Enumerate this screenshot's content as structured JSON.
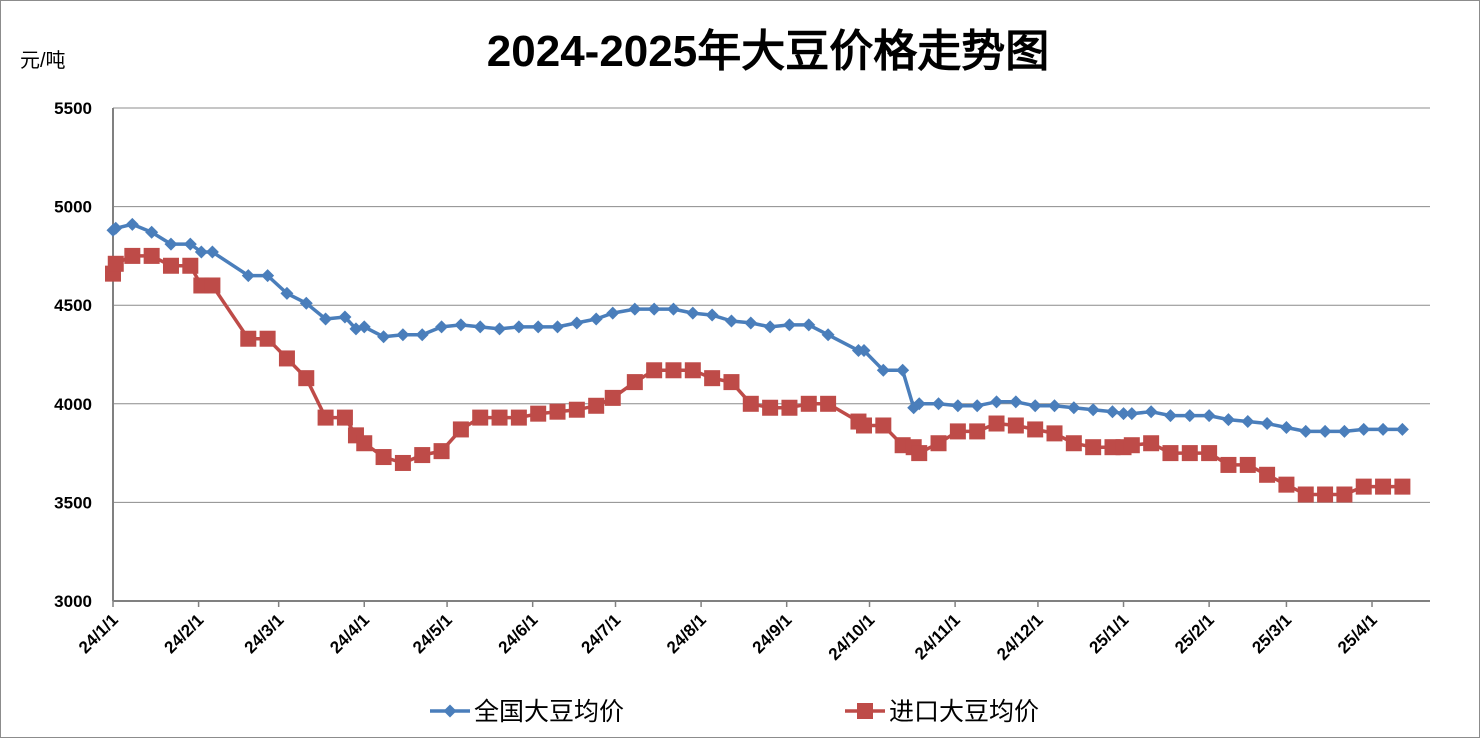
{
  "chart_data": {
    "type": "line",
    "title": "2024-2025年大豆价格走势图",
    "ylabel": "元/吨",
    "ylim": [
      3000,
      5500
    ],
    "yticks": [
      3000,
      3500,
      4000,
      4500,
      5000,
      5500
    ],
    "xlim": [
      "2024-01-01",
      "2025-04-22"
    ],
    "xticks": [
      "2024-01-01",
      "2024-02-01",
      "2024-03-01",
      "2024-04-01",
      "2024-05-01",
      "2024-06-01",
      "2024-07-01",
      "2024-08-01",
      "2024-09-01",
      "2024-10-01",
      "2024-11-01",
      "2024-12-01",
      "2025-01-01",
      "2025-02-01",
      "2025-03-01",
      "2025-04-01"
    ],
    "xtick_labels": [
      "24/1/1",
      "24/2/1",
      "24/3/1",
      "24/4/1",
      "24/5/1",
      "24/6/1",
      "24/7/1",
      "24/8/1",
      "24/9/1",
      "24/10/1",
      "24/11/1",
      "24/12/1",
      "25/1/1",
      "25/2/1",
      "25/3/1",
      "25/4/1"
    ],
    "grid": "horizontal",
    "legend_position": "bottom",
    "series": [
      {
        "name": "全国大豆均价",
        "color": "#4a7ebb",
        "marker": "diamond",
        "x": [
          "2024-01-01",
          "2024-01-02",
          "2024-01-08",
          "2024-01-15",
          "2024-01-22",
          "2024-01-29",
          "2024-02-02",
          "2024-02-06",
          "2024-02-19",
          "2024-02-26",
          "2024-03-04",
          "2024-03-11",
          "2024-03-18",
          "2024-03-25",
          "2024-03-29",
          "2024-04-01",
          "2024-04-08",
          "2024-04-15",
          "2024-04-22",
          "2024-04-29",
          "2024-05-06",
          "2024-05-13",
          "2024-05-20",
          "2024-05-27",
          "2024-06-03",
          "2024-06-10",
          "2024-06-17",
          "2024-06-24",
          "2024-06-30",
          "2024-07-08",
          "2024-07-15",
          "2024-07-22",
          "2024-07-29",
          "2024-08-05",
          "2024-08-12",
          "2024-08-19",
          "2024-08-26",
          "2024-09-02",
          "2024-09-09",
          "2024-09-16",
          "2024-09-27",
          "2024-09-29",
          "2024-10-06",
          "2024-10-13",
          "2024-10-17",
          "2024-10-19",
          "2024-10-26",
          "2024-11-02",
          "2024-11-09",
          "2024-11-16",
          "2024-11-23",
          "2024-11-30",
          "2024-12-07",
          "2024-12-14",
          "2024-12-21",
          "2024-12-28",
          "2025-01-01",
          "2025-01-04",
          "2025-01-11",
          "2025-01-18",
          "2025-01-25",
          "2025-02-01",
          "2025-02-08",
          "2025-02-15",
          "2025-02-22",
          "2025-03-01",
          "2025-03-08",
          "2025-03-15",
          "2025-03-22",
          "2025-03-29",
          "2025-04-05",
          "2025-04-12"
        ],
        "y": [
          4880,
          4890,
          4910,
          4870,
          4810,
          4810,
          4770,
          4770,
          4650,
          4650,
          4560,
          4510,
          4430,
          4440,
          4380,
          4390,
          4340,
          4350,
          4350,
          4390,
          4400,
          4390,
          4380,
          4390,
          4390,
          4390,
          4410,
          4430,
          4460,
          4480,
          4480,
          4480,
          4460,
          4450,
          4420,
          4410,
          4390,
          4400,
          4400,
          4350,
          4270,
          4270,
          4170,
          4170,
          3980,
          4000,
          4000,
          3990,
          3990,
          4010,
          4010,
          3990,
          3990,
          3980,
          3970,
          3960,
          3950,
          3950,
          3960,
          3940,
          3940,
          3940,
          3920,
          3910,
          3900,
          3880,
          3860,
          3860,
          3860,
          3870,
          3870,
          3870
        ]
      },
      {
        "name": "进口大豆均价",
        "color": "#be4b48",
        "marker": "square",
        "x": [
          "2024-01-01",
          "2024-01-02",
          "2024-01-08",
          "2024-01-15",
          "2024-01-22",
          "2024-01-29",
          "2024-02-02",
          "2024-02-06",
          "2024-02-19",
          "2024-02-26",
          "2024-03-04",
          "2024-03-11",
          "2024-03-18",
          "2024-03-25",
          "2024-03-29",
          "2024-04-01",
          "2024-04-08",
          "2024-04-15",
          "2024-04-22",
          "2024-04-29",
          "2024-05-06",
          "2024-05-13",
          "2024-05-20",
          "2024-05-27",
          "2024-06-03",
          "2024-06-10",
          "2024-06-17",
          "2024-06-24",
          "2024-06-30",
          "2024-07-08",
          "2024-07-15",
          "2024-07-22",
          "2024-07-29",
          "2024-08-05",
          "2024-08-12",
          "2024-08-19",
          "2024-08-26",
          "2024-09-02",
          "2024-09-09",
          "2024-09-16",
          "2024-09-27",
          "2024-09-29",
          "2024-10-06",
          "2024-10-13",
          "2024-10-17",
          "2024-10-19",
          "2024-10-26",
          "2024-11-02",
          "2024-11-09",
          "2024-11-16",
          "2024-11-23",
          "2024-11-30",
          "2024-12-07",
          "2024-12-14",
          "2024-12-21",
          "2024-12-28",
          "2025-01-01",
          "2025-01-04",
          "2025-01-11",
          "2025-01-18",
          "2025-01-25",
          "2025-02-01",
          "2025-02-08",
          "2025-02-15",
          "2025-02-22",
          "2025-03-01",
          "2025-03-08",
          "2025-03-15",
          "2025-03-22",
          "2025-03-29",
          "2025-04-05",
          "2025-04-12"
        ],
        "y": [
          4660,
          4710,
          4750,
          4750,
          4700,
          4700,
          4600,
          4600,
          4330,
          4330,
          4230,
          4130,
          3930,
          3930,
          3840,
          3800,
          3730,
          3700,
          3740,
          3760,
          3870,
          3930,
          3930,
          3930,
          3950,
          3960,
          3970,
          3990,
          4030,
          4110,
          4170,
          4170,
          4170,
          4130,
          4110,
          4000,
          3980,
          3980,
          4000,
          4000,
          3910,
          3890,
          3890,
          3790,
          3780,
          3750,
          3800,
          3860,
          3860,
          3900,
          3890,
          3870,
          3850,
          3800,
          3780,
          3780,
          3780,
          3790,
          3800,
          3750,
          3750,
          3750,
          3690,
          3690,
          3640,
          3590,
          3540,
          3540,
          3540,
          3580,
          3580,
          3580
        ]
      }
    ]
  }
}
